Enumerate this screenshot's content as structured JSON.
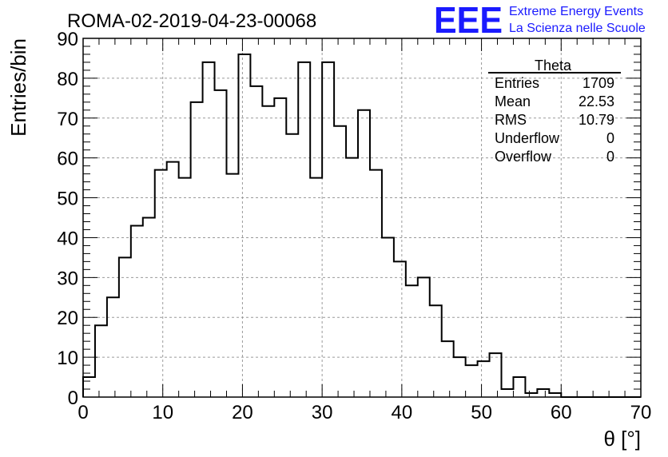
{
  "run_title": "ROMA-02-2019-04-23-00068",
  "logo": {
    "letters": "EEE",
    "line1": "Extreme Energy Events",
    "line2": "La Scienza nelle Scuole",
    "color": "#1a1aff"
  },
  "stats": {
    "name": "Theta",
    "rows": [
      {
        "label": "Entries",
        "value": "1709"
      },
      {
        "label": "Mean",
        "value": "22.53"
      },
      {
        "label": "RMS",
        "value": "10.79"
      },
      {
        "label": "Underflow",
        "value": "0"
      },
      {
        "label": "Overflow",
        "value": "0"
      }
    ]
  },
  "chart_data": {
    "type": "bar",
    "histogram": true,
    "title": "ROMA-02-2019-04-23-00068",
    "xlabel": "θ [°]",
    "ylabel": "Entries/bin",
    "xlim": [
      0,
      70
    ],
    "ylim": [
      0,
      90
    ],
    "bin_width": 1.5,
    "grid": true,
    "x_ticks": [
      0,
      10,
      20,
      30,
      40,
      50,
      60,
      70
    ],
    "y_ticks": [
      0,
      10,
      20,
      30,
      40,
      50,
      60,
      70,
      80,
      90
    ],
    "bin_low_edges": [
      0,
      1.5,
      3,
      4.5,
      6,
      7.5,
      9,
      10.5,
      12,
      13.5,
      15,
      16.5,
      18,
      19.5,
      21,
      22.5,
      24,
      25.5,
      27,
      28.5,
      30,
      31.5,
      33,
      34.5,
      36,
      37.5,
      39,
      40.5,
      42,
      43.5,
      45,
      46.5,
      48,
      49.5,
      51,
      52.5,
      54,
      55.5,
      57,
      58.5,
      60,
      61.5,
      63,
      64.5,
      66,
      67.5,
      69
    ],
    "values": [
      5,
      18,
      25,
      35,
      43,
      45,
      57,
      59,
      55,
      74,
      84,
      77,
      56,
      86,
      78,
      73,
      75,
      66,
      84,
      55,
      84,
      68,
      60,
      72,
      57,
      40,
      34,
      28,
      30,
      23,
      14,
      10,
      8,
      9,
      11,
      2,
      5,
      1,
      2,
      1,
      0,
      0,
      0,
      0,
      0,
      0,
      0
    ],
    "line_color": "#000000"
  }
}
